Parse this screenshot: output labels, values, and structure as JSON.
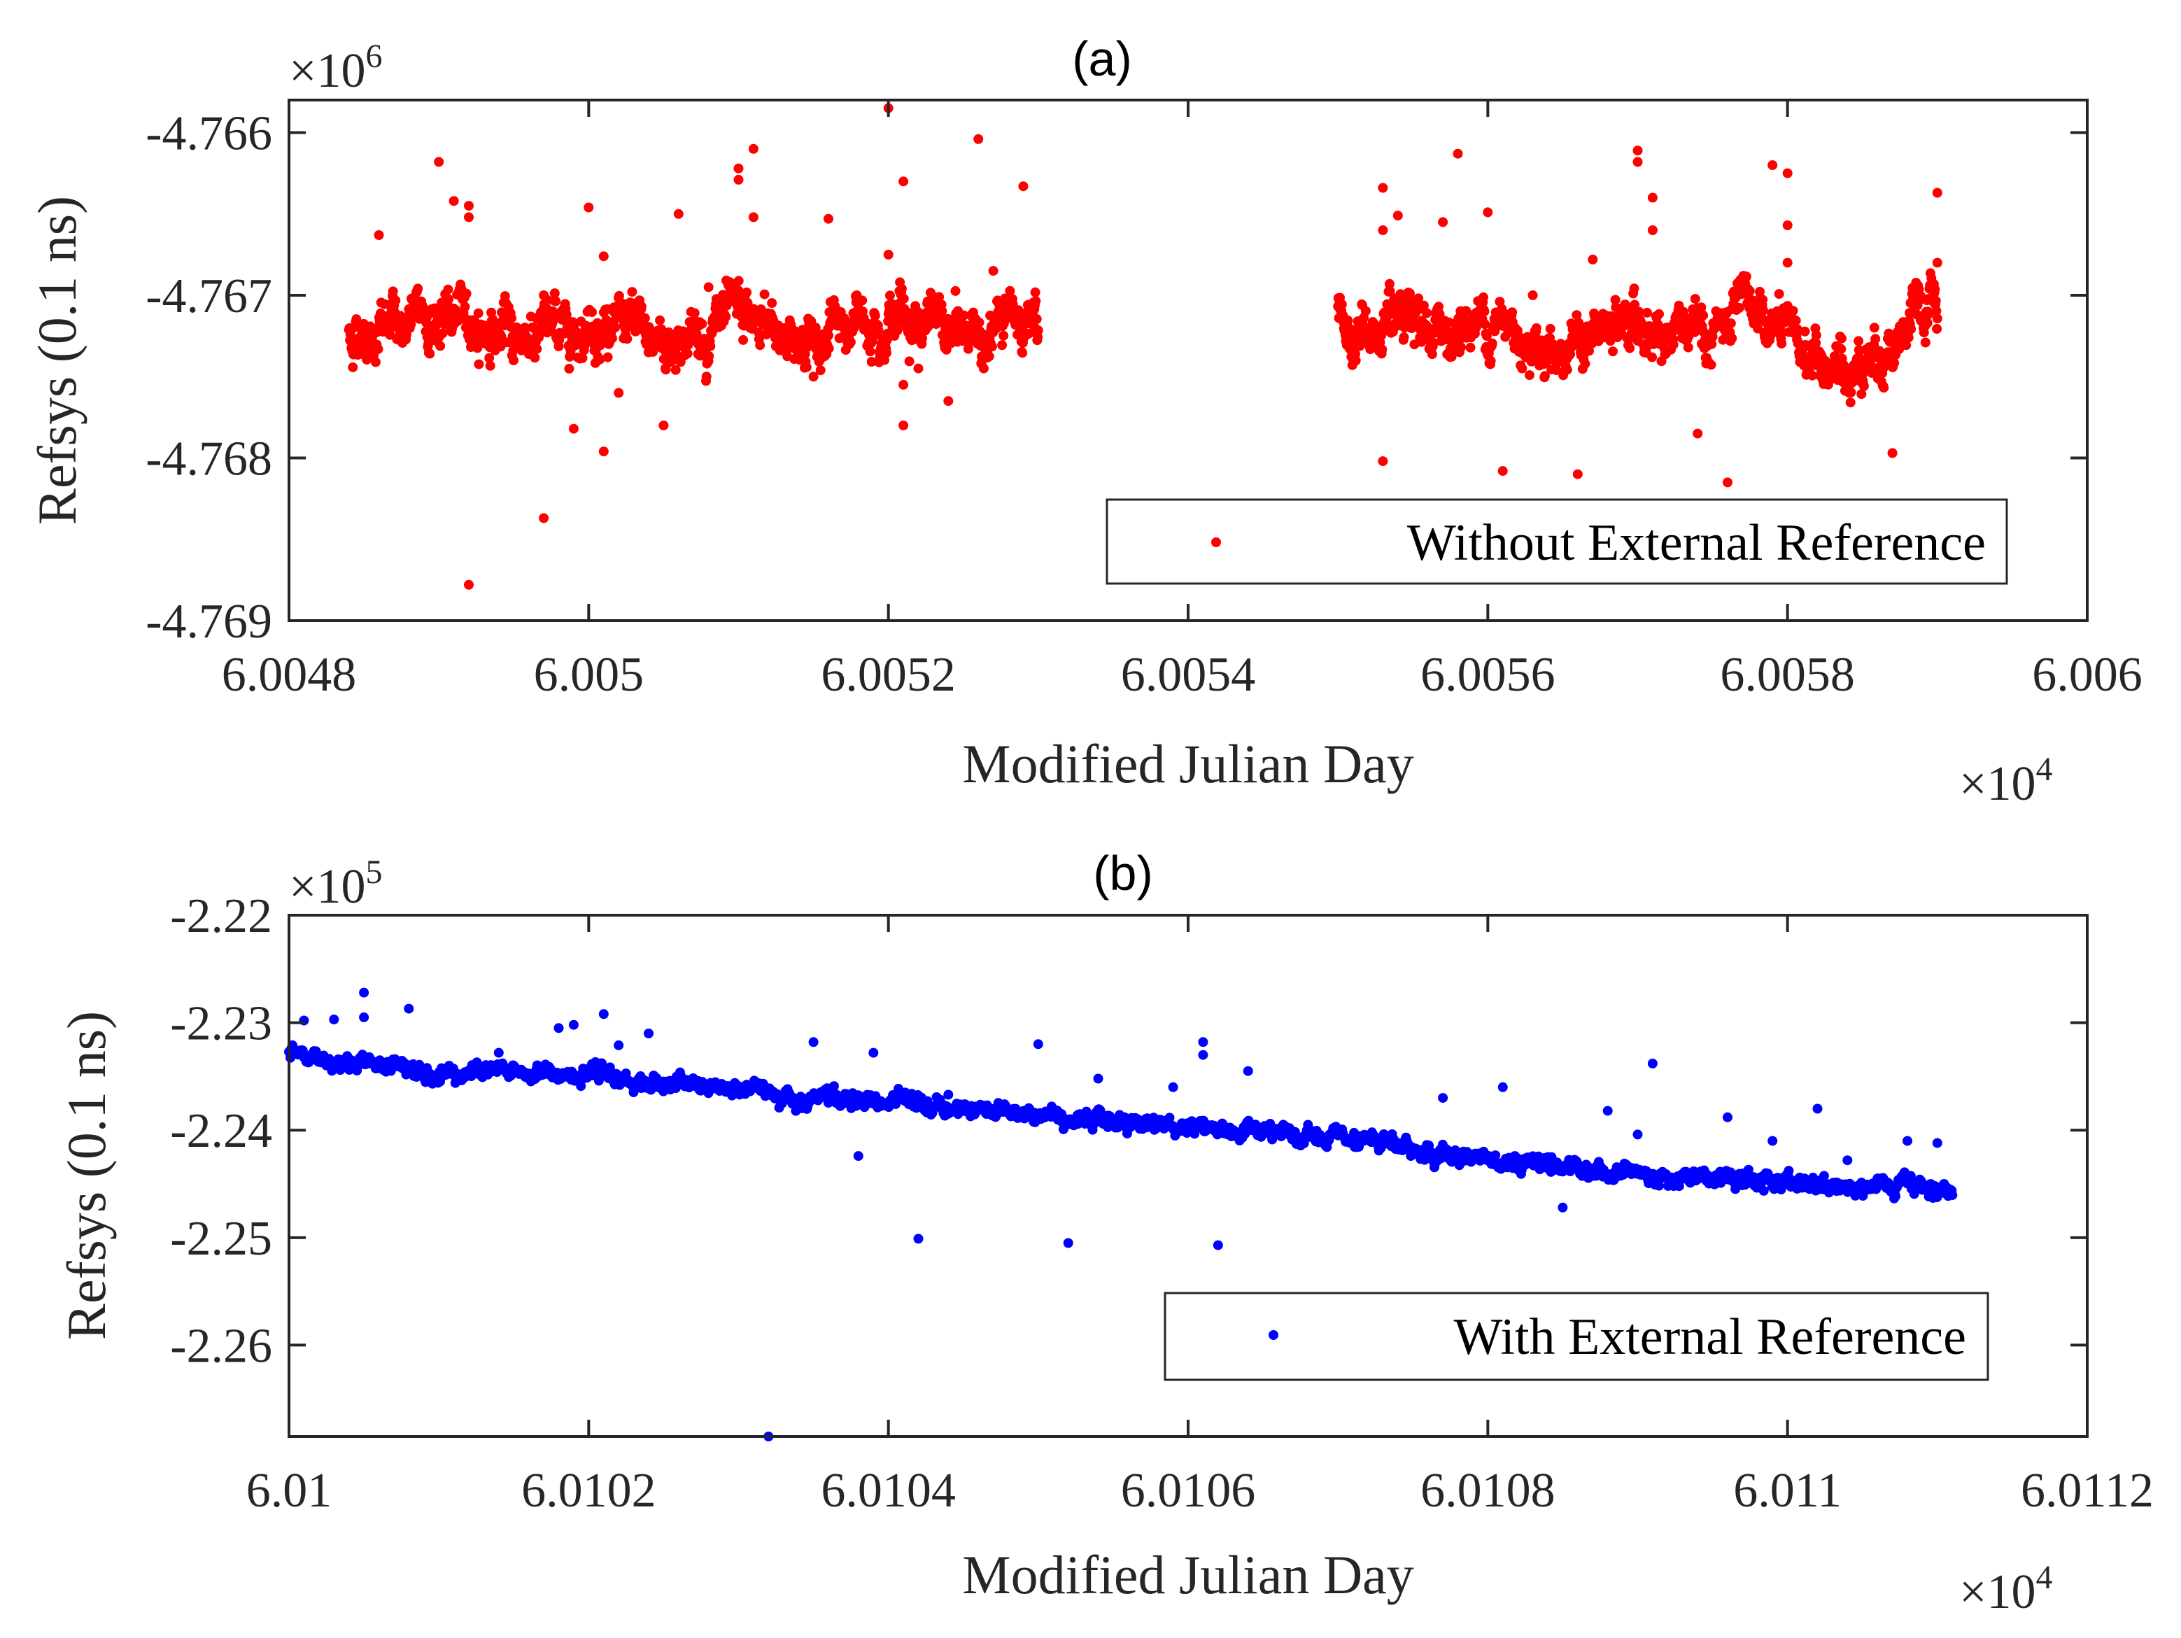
{
  "chart_data": [
    {
      "type": "scatter",
      "panel_label": "(a)",
      "xlabel": "Modified Julian Day",
      "ylabel": "Refsys (0.1 ns)",
      "x_multiplier": "×10",
      "x_exponent": "4",
      "y_multiplier": "×10",
      "y_exponent": "6",
      "xlim": [
        6.0048,
        6.006
      ],
      "ylim": [
        -4.769,
        -4.7658
      ],
      "xticks": [
        6.0048,
        6.005,
        6.0052,
        6.0054,
        6.0056,
        6.0058,
        6.006
      ],
      "xtick_labels": [
        "6.0048",
        "6.005",
        "6.0052",
        "6.0054",
        "6.0056",
        "6.0058",
        "6.006"
      ],
      "yticks": [
        -4.769,
        -4.768,
        -4.767,
        -4.766
      ],
      "ytick_labels": [
        "-4.769",
        "-4.768",
        "-4.767",
        "-4.766"
      ],
      "grid": false,
      "legend_position": "bottom-right",
      "series": [
        {
          "name": "Without External Reference",
          "color": "#ff0000",
          "segments": [
            {
              "x_start": 6.00484,
              "x_end": 6.0053,
              "y_points": [
                [
                  6.00484,
                  -4.76725
                ],
                [
                  6.0049,
                  -4.76712
                ],
                [
                  6.00495,
                  -4.76725
                ],
                [
                  6.005,
                  -4.76715
                ],
                [
                  6.00505,
                  -4.76728
                ],
                [
                  6.0051,
                  -4.76718
                ],
                [
                  6.00515,
                  -4.76728
                ],
                [
                  6.0052,
                  -4.76708
                ],
                [
                  6.00525,
                  -4.76725
                ],
                [
                  6.0053,
                  -4.76715
                ]
              ],
              "noise": 9e-05
            },
            {
              "x_start": 6.0055,
              "x_end": 6.0059,
              "y_points": [
                [
                  6.0055,
                  -4.76718
                ],
                [
                  6.00555,
                  -4.76728
                ],
                [
                  6.0056,
                  -4.76715
                ],
                [
                  6.00565,
                  -4.76732
                ],
                [
                  6.0057,
                  -4.76718
                ],
                [
                  6.00574,
                  -4.76728
                ],
                [
                  6.00578,
                  -4.76712
                ],
                [
                  6.00581,
                  -4.76735
                ],
                [
                  6.00583,
                  -4.76748
                ],
                [
                  6.00587,
                  -4.76728
                ],
                [
                  6.0059,
                  -4.7671
                ]
              ],
              "noise": 9e-05
            }
          ],
          "outliers": [
            [
              6.00486,
              -4.76663
            ],
            [
              6.0049,
              -4.76618
            ],
            [
              6.00491,
              -4.76642
            ],
            [
              6.00492,
              -4.76652
            ],
            [
              6.00492,
              -4.76645
            ],
            [
              6.00492,
              -4.76878
            ],
            [
              6.00497,
              -4.76837
            ],
            [
              6.00497,
              -4.767
            ],
            [
              6.00499,
              -4.76782
            ],
            [
              6.005,
              -4.76646
            ],
            [
              6.00501,
              -4.76676
            ],
            [
              6.00501,
              -4.76796
            ],
            [
              6.00502,
              -4.7676
            ],
            [
              6.00505,
              -4.7678
            ],
            [
              6.00506,
              -4.7665
            ],
            [
              6.00508,
              -4.76695
            ],
            [
              6.0051,
              -4.76622
            ],
            [
              6.0051,
              -4.76629
            ],
            [
              6.00511,
              -4.76652
            ],
            [
              6.00511,
              -4.7661
            ],
            [
              6.00515,
              -4.7675
            ],
            [
              6.00516,
              -4.76653
            ],
            [
              6.0052,
              -4.76585
            ],
            [
              6.0052,
              -4.76675
            ],
            [
              6.00521,
              -4.7663
            ],
            [
              6.00521,
              -4.76755
            ],
            [
              6.00521,
              -4.7678
            ],
            [
              6.00522,
              -4.76745
            ],
            [
              6.00524,
              -4.76765
            ],
            [
              6.00526,
              -4.76604
            ],
            [
              6.00527,
              -4.76685
            ],
            [
              6.00529,
              -4.76633
            ],
            [
              6.00553,
              -4.76634
            ],
            [
              6.00553,
              -4.7666
            ],
            [
              6.00553,
              -4.76802
            ],
            [
              6.00554,
              -4.76651
            ],
            [
              6.00557,
              -4.76655
            ],
            [
              6.00558,
              -4.76613
            ],
            [
              6.0056,
              -4.76649
            ],
            [
              6.00561,
              -4.76808
            ],
            [
              6.00563,
              -4.767
            ],
            [
              6.00566,
              -4.7681
            ],
            [
              6.00567,
              -4.76678
            ],
            [
              6.0057,
              -4.76611
            ],
            [
              6.0057,
              -4.76618
            ],
            [
              6.00571,
              -4.7664
            ],
            [
              6.00571,
              -4.7666
            ],
            [
              6.00574,
              -4.76785
            ],
            [
              6.00576,
              -4.76815
            ],
            [
              6.00579,
              -4.7662
            ],
            [
              6.0058,
              -4.76625
            ],
            [
              6.0058,
              -4.76657
            ],
            [
              6.0058,
              -4.7668
            ],
            [
              6.00584,
              -4.7675
            ],
            [
              6.00587,
              -4.76797
            ],
            [
              6.0059,
              -4.76637
            ],
            [
              6.0059,
              -4.7668
            ]
          ]
        }
      ]
    },
    {
      "type": "scatter",
      "panel_label": "(b)",
      "xlabel": "Modified Julian Day",
      "ylabel": "Refsys (0.1 ns)",
      "x_multiplier": "×10",
      "x_exponent": "4",
      "y_multiplier": "×10",
      "y_exponent": "5",
      "xlim": [
        6.01,
        6.0112
      ],
      "ylim": [
        -2.2685,
        -2.22
      ],
      "xticks": [
        6.01,
        6.0102,
        6.0104,
        6.0106,
        6.0108,
        6.011,
        6.0112
      ],
      "xtick_labels": [
        "6.01",
        "6.0102",
        "6.0104",
        "6.0106",
        "6.0108",
        "6.011",
        "6.0112"
      ],
      "yticks": [
        -2.26,
        -2.25,
        -2.24,
        -2.23,
        -2.22
      ],
      "ytick_labels": [
        "-2.26",
        "-2.25",
        "-2.24",
        "-2.23",
        "-2.22"
      ],
      "grid": false,
      "legend_position": "bottom-right",
      "series": [
        {
          "name": "With External Reference",
          "color": "#0000ff",
          "segments": [
            {
              "x_start": 6.01,
              "x_end": 6.01111,
              "y_points": [
                [
                  6.01,
                  -2.2332
                ],
                [
                  6.0101,
                  -2.2343
                ],
                [
                  6.0102,
                  -2.235
                ],
                [
                  6.0103,
                  -2.2363
                ],
                [
                  6.0104,
                  -2.2375
                ],
                [
                  6.0105,
                  -2.2384
                ],
                [
                  6.0106,
                  -2.2396
                ],
                [
                  6.0107,
                  -2.2411
                ],
                [
                  6.0108,
                  -2.2425
                ],
                [
                  6.0109,
                  -2.244
                ],
                [
                  6.011,
                  -2.245
                ],
                [
                  6.01111,
                  -2.2455
                ]
              ],
              "noise": 0.00045
            }
          ],
          "outliers": [
            [
              6.01001,
              -2.2298
            ],
            [
              6.01003,
              -2.2297
            ],
            [
              6.01005,
              -2.2272
            ],
            [
              6.01005,
              -2.2295
            ],
            [
              6.01008,
              -2.2287
            ],
            [
              6.01014,
              -2.2328
            ],
            [
              6.01018,
              -2.2305
            ],
            [
              6.01019,
              -2.2302
            ],
            [
              6.01021,
              -2.2292
            ],
            [
              6.01022,
              -2.2321
            ],
            [
              6.01024,
              -2.231
            ],
            [
              6.01032,
              -2.2685
            ],
            [
              6.01035,
              -2.2318
            ],
            [
              6.01038,
              -2.2424
            ],
            [
              6.01039,
              -2.2328
            ],
            [
              6.01042,
              -2.2501
            ],
            [
              6.01044,
              -2.2367
            ],
            [
              6.0105,
              -2.232
            ],
            [
              6.01052,
              -2.2505
            ],
            [
              6.01054,
              -2.2352
            ],
            [
              6.01059,
              -2.236
            ],
            [
              6.01061,
              -2.2318
            ],
            [
              6.01061,
              -2.233
            ],
            [
              6.01062,
              -2.2507
            ],
            [
              6.01064,
              -2.2345
            ],
            [
              6.01068,
              -2.2395
            ],
            [
              6.01077,
              -2.237
            ],
            [
              6.01081,
              -2.236
            ],
            [
              6.01085,
              -2.2472
            ],
            [
              6.01088,
              -2.2382
            ],
            [
              6.0109,
              -2.2404
            ],
            [
              6.01091,
              -2.2338
            ],
            [
              6.01096,
              -2.2388
            ],
            [
              6.01099,
              -2.241
            ],
            [
              6.01102,
              -2.238
            ],
            [
              6.01104,
              -2.2428
            ],
            [
              6.01108,
              -2.241
            ],
            [
              6.0111,
              -2.2412
            ]
          ]
        }
      ]
    }
  ]
}
